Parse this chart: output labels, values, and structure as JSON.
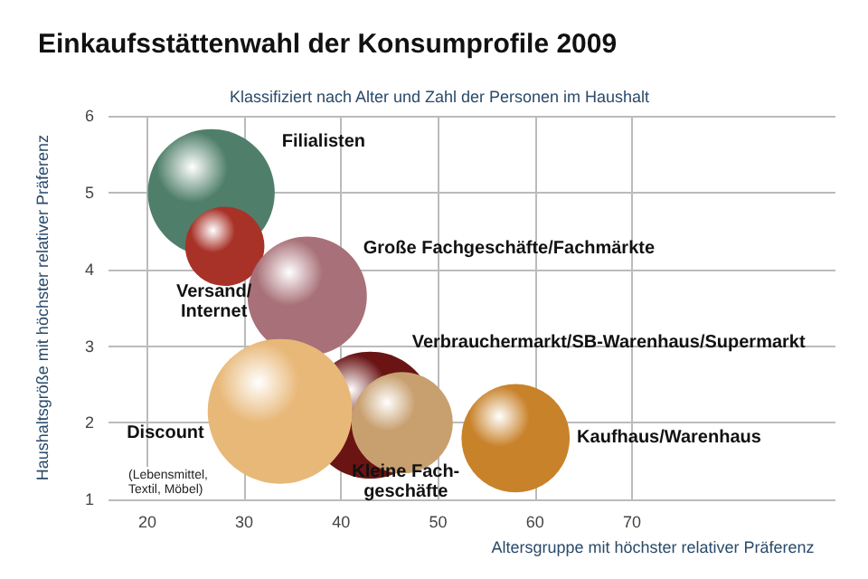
{
  "chart_data": {
    "type": "bubble",
    "title": "Einkaufsstättenwahl der Konsumprofile 2009",
    "subtitle": "Klassifiziert nach Alter und Zahl der Personen im Haushalt",
    "xlabel": "Altersgruppe mit höchster relativer Präferenz",
    "ylabel": "Haushaltsgröße mit höchster relativer Präferenz",
    "xlim": [
      16,
      91
    ],
    "xticks": [
      20,
      30,
      40,
      50,
      60,
      70
    ],
    "ylim": [
      1,
      6
    ],
    "yticks": [
      1,
      2,
      3,
      4,
      5,
      6
    ],
    "grid": true,
    "legend": false,
    "marker": "circle",
    "series": [
      {
        "name": "Filialisten",
        "color": "#4f7f6a",
        "x": [
          26.6
        ],
        "values": [
          5.0
        ],
        "sizes": [
          0.77
        ]
      },
      {
        "name": "Versand/\nInternet",
        "color": "#a83228",
        "x": [
          28
        ],
        "values": [
          4.3
        ],
        "sizes": [
          0.3
        ]
      },
      {
        "name": "Große Fachgeschäfte/Fachmärkte",
        "color": "#a87078",
        "x": [
          36.5
        ],
        "values": [
          3.65
        ],
        "sizes": [
          0.68
        ]
      },
      {
        "name": "Verbrauchermarkt/SB-Warenhaus/Supermarkt",
        "color": "#6a1414",
        "x": [
          43
        ],
        "values": [
          2.1
        ],
        "sizes": [
          0.77
        ]
      },
      {
        "name": "Discount",
        "color": "#e8b878",
        "x": [
          33.7
        ],
        "values": [
          2.15
        ],
        "sizes": [
          1
        ]
      },
      {
        "name": "Kleine Fach-\ngeschäfte",
        "color": "#c8a070",
        "x": [
          46.3
        ],
        "values": [
          2.0
        ],
        "sizes": [
          0.49
        ]
      },
      {
        "name": "Kaufhaus/Warenhaus",
        "color": "#c8822a",
        "x": [
          58
        ],
        "values": [
          1.8
        ],
        "sizes": [
          0.56
        ]
      }
    ],
    "annotations": [
      "(Lebensmittel,\nTextil, Möbel)"
    ]
  }
}
